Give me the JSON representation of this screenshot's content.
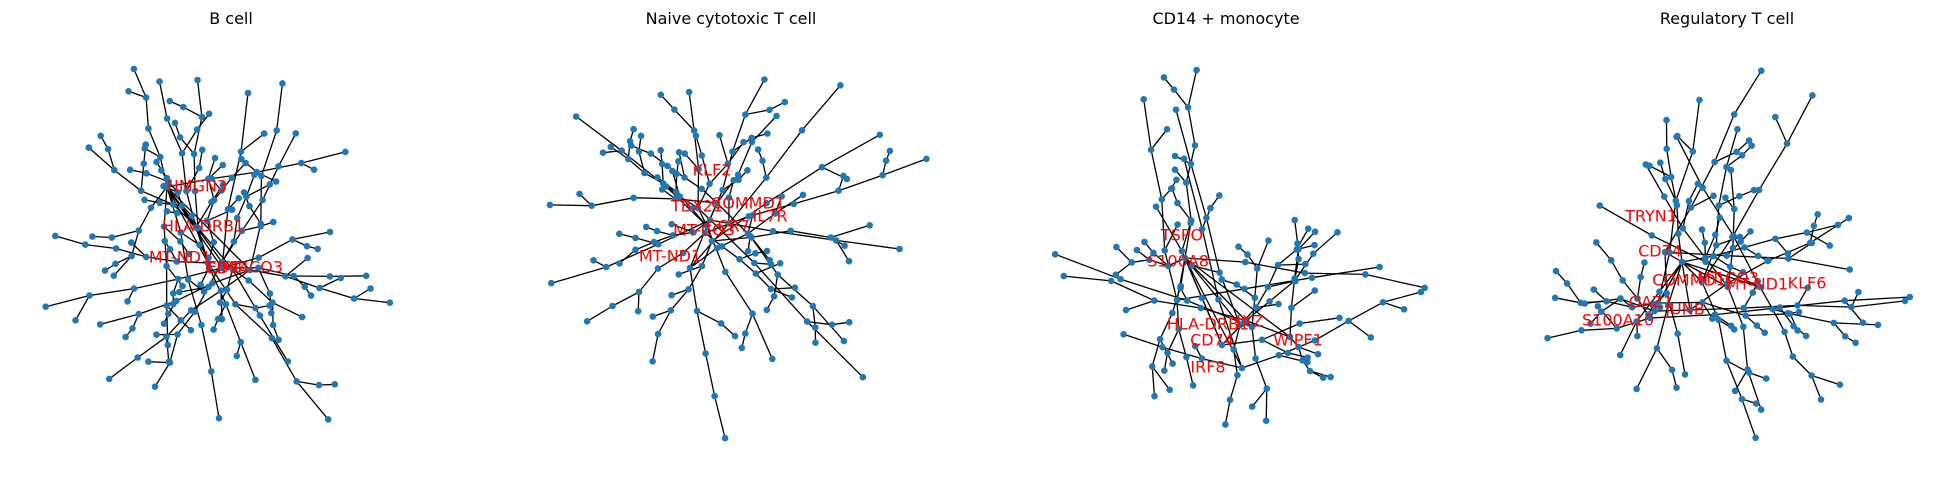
{
  "figure": {
    "node_color": "#1f77b4",
    "edge_color": "#000000",
    "label_color": "#ff0000",
    "panels": [
      {
        "title": "B cell",
        "hub_genes": [
          "HMGN3",
          "HLA-DRB1",
          "MT-ND1",
          "CD74",
          "MT-CO3",
          "EIF1"
        ]
      },
      {
        "title": "Naive cytotoxic T cell",
        "hub_genes": [
          "KLF2",
          "TBX21",
          "COMMD1",
          "CCR7",
          "MT-CO3",
          "IL7R",
          "MT-ND1"
        ]
      },
      {
        "title": "CD14 + monocyte",
        "hub_genes": [
          "TSPO",
          "S100A8",
          "HLA-DRB1",
          "LYZ",
          "WIPF1",
          "CD74",
          "IRF8"
        ]
      },
      {
        "title": "Regulatory T cell",
        "hub_genes": [
          "TRYN1",
          "CD74",
          "COMMD1",
          "MT-CO3",
          "MT-ND1",
          "KLF6",
          "OAZ1",
          "JUNB",
          "S100A10"
        ]
      }
    ]
  }
}
